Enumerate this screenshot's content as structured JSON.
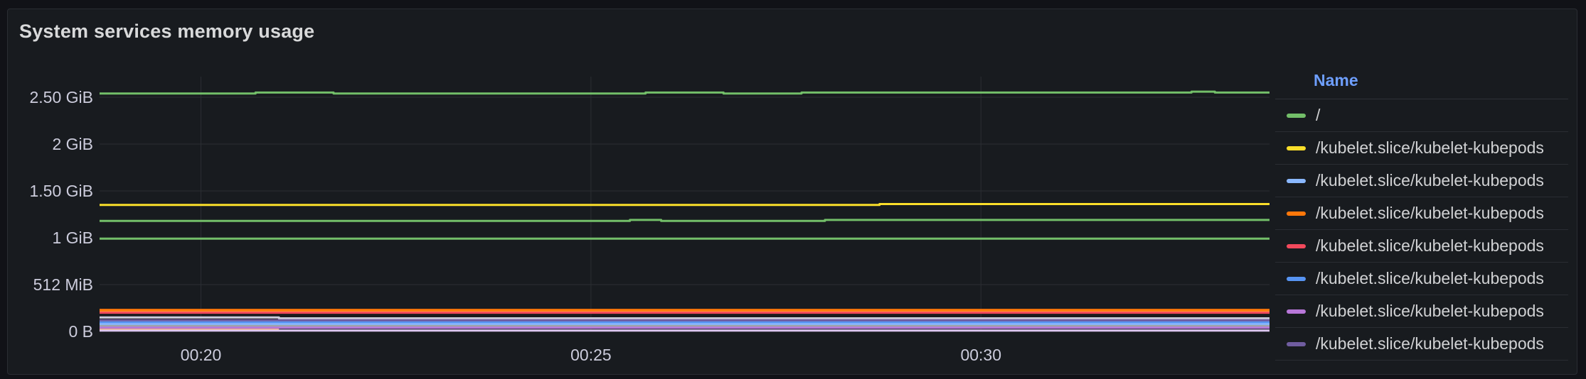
{
  "panel": {
    "title": "System services memory usage"
  },
  "legend": {
    "header": "Name"
  },
  "chart_data": {
    "type": "line",
    "title": "System services memory usage",
    "x_tick_labels": [
      "00:20",
      "00:25",
      "00:30"
    ],
    "x_ticks_minutes": [
      20,
      25,
      30
    ],
    "xlim_minutes": [
      18.7,
      33.7
    ],
    "y_tick_labels": [
      "0 B",
      "512 MiB",
      "1 GiB",
      "1.50 GiB",
      "2 GiB",
      "2.50 GiB"
    ],
    "y_ticks_gib": [
      0,
      0.5,
      1,
      1.5,
      2,
      2.5
    ],
    "ylim_gib": [
      0,
      2.72
    ],
    "series": [
      {
        "name": "/",
        "color": "#73bf69",
        "values": [
          [
            18.7,
            2.54
          ],
          [
            20.7,
            2.54
          ],
          [
            20.7,
            2.55
          ],
          [
            21.7,
            2.55
          ],
          [
            21.7,
            2.54
          ],
          [
            25.7,
            2.54
          ],
          [
            25.7,
            2.55
          ],
          [
            26.7,
            2.55
          ],
          [
            26.7,
            2.54
          ],
          [
            27.7,
            2.54
          ],
          [
            27.7,
            2.55
          ],
          [
            32.7,
            2.55
          ],
          [
            32.7,
            2.56
          ],
          [
            33.0,
            2.56
          ],
          [
            33.0,
            2.55
          ],
          [
            33.7,
            2.55
          ]
        ]
      },
      {
        "name": "/kubelet.slice/kubelet-kubepods",
        "color": "#fade2a",
        "values": [
          [
            18.7,
            1.35
          ],
          [
            28.7,
            1.35
          ],
          [
            28.7,
            1.36
          ],
          [
            33.7,
            1.36
          ]
        ]
      },
      {
        "name": "/kubelet.slice/kubelet-kubepods",
        "color": "#8ab8ff",
        "values": [
          [
            18.7,
            0.08
          ],
          [
            33.7,
            0.08
          ]
        ]
      },
      {
        "name": "/kubelet.slice/kubelet-kubepods",
        "color": "#ff780a",
        "values": [
          [
            18.7,
            0.23
          ],
          [
            33.7,
            0.23
          ]
        ]
      },
      {
        "name": "/kubelet.slice/kubelet-kubepods",
        "color": "#f2495c",
        "values": [
          [
            18.7,
            0.2
          ],
          [
            33.7,
            0.2
          ]
        ]
      },
      {
        "name": "/kubelet.slice/kubelet-kubepods",
        "color": "#5794f2",
        "values": [
          [
            18.7,
            0.1
          ],
          [
            33.7,
            0.1
          ]
        ]
      },
      {
        "name": "/kubelet.slice/kubelet-kubepods",
        "color": "#b877d9",
        "values": [
          [
            18.7,
            0.04
          ],
          [
            33.7,
            0.04
          ]
        ]
      },
      {
        "name": "/kubelet.slice/kubelet-kubepods",
        "color": "#705da0",
        "values": [
          [
            18.7,
            0.12
          ],
          [
            33.7,
            0.12
          ]
        ]
      },
      {
        "name": "",
        "color": "#73bf69",
        "values": [
          [
            18.7,
            1.18
          ],
          [
            25.5,
            1.18
          ],
          [
            25.5,
            1.19
          ],
          [
            25.9,
            1.19
          ],
          [
            25.9,
            1.18
          ],
          [
            28.0,
            1.18
          ],
          [
            28.0,
            1.19
          ],
          [
            33.7,
            1.19
          ]
        ]
      },
      {
        "name": "",
        "color": "#73bf69",
        "values": [
          [
            18.7,
            0.99
          ],
          [
            33.7,
            0.99
          ]
        ]
      },
      {
        "name": "",
        "color": "#ff9830",
        "values": [
          [
            18.7,
            0.21
          ],
          [
            33.7,
            0.21
          ]
        ]
      },
      {
        "name": "",
        "color": "#a0a3a8",
        "values": [
          [
            18.7,
            0.06
          ],
          [
            33.7,
            0.06
          ]
        ]
      },
      {
        "name": "",
        "color": "#ffb357",
        "values": [
          [
            18.7,
            0.02
          ],
          [
            21.0,
            0.02
          ]
        ]
      },
      {
        "name": "",
        "color": "#dcc6f0",
        "values": [
          [
            18.7,
            0.01
          ],
          [
            33.7,
            0.01
          ]
        ]
      },
      {
        "name": "",
        "color": "#ccccdc",
        "values": [
          [
            18.7,
            0.15
          ],
          [
            21.0,
            0.15
          ],
          [
            21.0,
            0.14
          ],
          [
            33.7,
            0.14
          ]
        ]
      }
    ],
    "grid": true,
    "legend_position": "right"
  }
}
